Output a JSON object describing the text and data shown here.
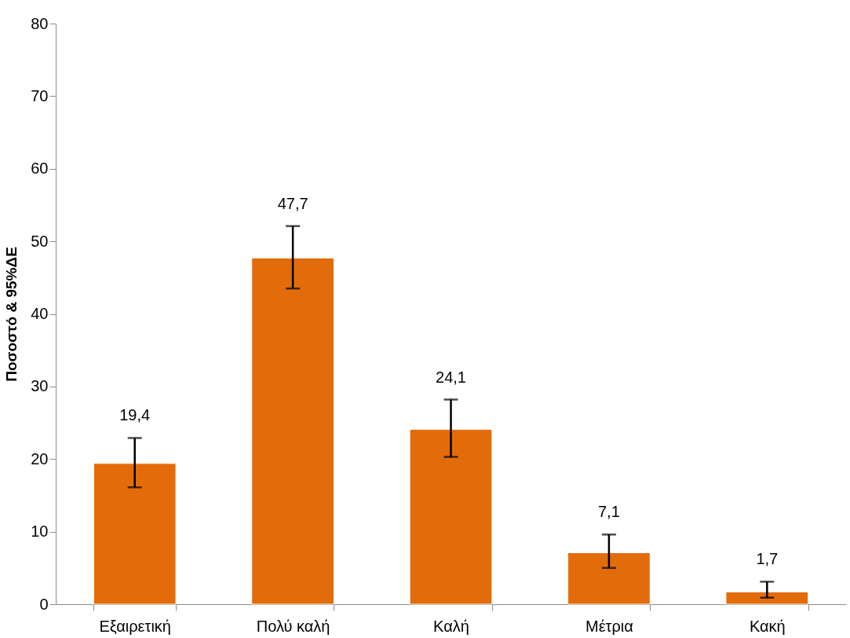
{
  "chart_data": {
    "type": "bar",
    "ylabel": "Ποσοστό & 95%ΔΕ",
    "categories": [
      "Εξαιρετική",
      "Πολύ καλή",
      "Καλή",
      "Μέτρια",
      "Κακή"
    ],
    "values": [
      19.4,
      47.7,
      24.1,
      7.1,
      1.7
    ],
    "value_labels": [
      "19,4",
      "47,7",
      "24,1",
      "7,1",
      "1,7"
    ],
    "errors": [
      [
        16.1,
        22.9
      ],
      [
        43.5,
        52.1
      ],
      [
        20.3,
        28.2
      ],
      [
        5.0,
        9.6
      ],
      [
        0.9,
        3.1
      ]
    ],
    "color": "#e36c0a",
    "ylim": [
      0,
      80
    ],
    "yticks": [
      0,
      10,
      20,
      30,
      40,
      50,
      60,
      70,
      80
    ],
    "grid": false
  }
}
